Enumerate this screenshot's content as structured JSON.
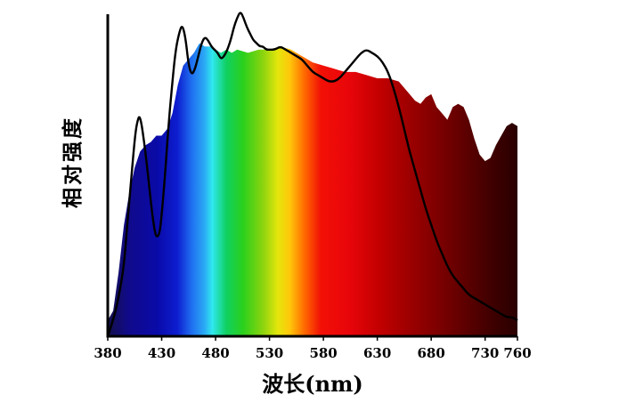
{
  "chart_data": {
    "type": "area",
    "xlabel": "波长(nm)",
    "ylabel": "相对强度",
    "xlim": [
      380,
      760
    ],
    "ylim": [
      0,
      1.0
    ],
    "x_ticks": [
      380,
      430,
      480,
      530,
      580,
      630,
      680,
      730,
      760
    ],
    "x_tick_labels": [
      "380",
      "430",
      "480",
      "530",
      "580",
      "630",
      "680",
      "730",
      "760"
    ],
    "y_ticks_shown": false,
    "fill_gradient": "visible-spectrum",
    "series": [
      {
        "style": "colored-area",
        "x": [
          380,
          385,
          390,
          395,
          400,
          405,
          410,
          415,
          420,
          425,
          430,
          435,
          440,
          445,
          450,
          455,
          460,
          465,
          470,
          475,
          480,
          485,
          490,
          495,
          500,
          510,
          520,
          530,
          540,
          550,
          560,
          570,
          580,
          590,
          600,
          610,
          620,
          630,
          640,
          650,
          660,
          665,
          670,
          675,
          680,
          685,
          690,
          695,
          700,
          705,
          710,
          715,
          720,
          725,
          730,
          735,
          740,
          745,
          750,
          755,
          760
        ],
        "y": [
          0.05,
          0.08,
          0.2,
          0.35,
          0.45,
          0.53,
          0.58,
          0.6,
          0.61,
          0.63,
          0.63,
          0.65,
          0.7,
          0.79,
          0.85,
          0.87,
          0.89,
          0.92,
          0.91,
          0.91,
          0.9,
          0.89,
          0.9,
          0.89,
          0.9,
          0.89,
          0.9,
          0.9,
          0.91,
          0.9,
          0.88,
          0.86,
          0.85,
          0.84,
          0.83,
          0.83,
          0.82,
          0.81,
          0.81,
          0.8,
          0.76,
          0.74,
          0.73,
          0.75,
          0.76,
          0.72,
          0.7,
          0.68,
          0.72,
          0.73,
          0.72,
          0.68,
          0.62,
          0.57,
          0.55,
          0.56,
          0.6,
          0.63,
          0.66,
          0.67,
          0.66
        ]
      },
      {
        "style": "black-line",
        "x": [
          380,
          385,
          390,
          395,
          398,
          402,
          405,
          407,
          410,
          415,
          420,
          423,
          425,
          428,
          430,
          433,
          436,
          440,
          443,
          446,
          449,
          452,
          455,
          458,
          461,
          464,
          467,
          470,
          473,
          476,
          479,
          482,
          485,
          488,
          491,
          494,
          497,
          500,
          503,
          506,
          509,
          512,
          515,
          518,
          521,
          524,
          527,
          530,
          535,
          540,
          545,
          550,
          555,
          560,
          565,
          570,
          575,
          580,
          585,
          590,
          595,
          600,
          605,
          610,
          615,
          620,
          625,
          630,
          635,
          640,
          645,
          650,
          655,
          660,
          665,
          670,
          675,
          680,
          685,
          690,
          695,
          700,
          705,
          710,
          715,
          720,
          725,
          730,
          735,
          740,
          745,
          750,
          755,
          760
        ],
        "y": [
          0.0,
          0.05,
          0.12,
          0.22,
          0.35,
          0.5,
          0.62,
          0.67,
          0.7,
          0.58,
          0.42,
          0.34,
          0.31,
          0.32,
          0.38,
          0.5,
          0.65,
          0.8,
          0.9,
          0.95,
          0.98,
          0.94,
          0.85,
          0.82,
          0.84,
          0.88,
          0.92,
          0.94,
          0.93,
          0.91,
          0.9,
          0.89,
          0.87,
          0.88,
          0.9,
          0.93,
          0.97,
          1.0,
          1.02,
          1.0,
          0.97,
          0.95,
          0.93,
          0.92,
          0.91,
          0.91,
          0.9,
          0.9,
          0.9,
          0.91,
          0.9,
          0.89,
          0.88,
          0.87,
          0.85,
          0.83,
          0.82,
          0.81,
          0.8,
          0.8,
          0.81,
          0.83,
          0.85,
          0.87,
          0.89,
          0.9,
          0.89,
          0.88,
          0.86,
          0.83,
          0.78,
          0.72,
          0.65,
          0.58,
          0.52,
          0.46,
          0.4,
          0.35,
          0.3,
          0.26,
          0.22,
          0.19,
          0.17,
          0.15,
          0.13,
          0.12,
          0.11,
          0.1,
          0.09,
          0.08,
          0.07,
          0.06,
          0.06,
          0.05
        ]
      }
    ]
  }
}
